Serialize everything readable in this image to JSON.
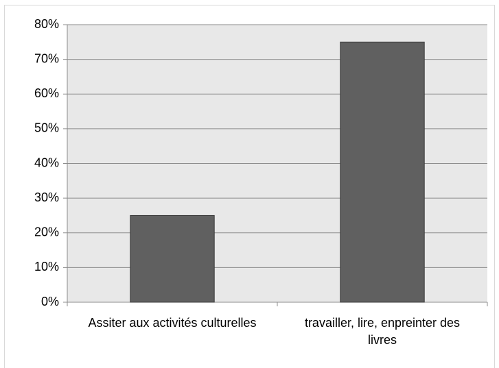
{
  "chart_data": {
    "type": "bar",
    "categories": [
      "Assiter aux activités culturelles",
      "travailler, lire, enpreinter des livres"
    ],
    "values": [
      25,
      75
    ],
    "color": "#606060",
    "ylim": [
      0,
      80
    ],
    "yticks": [
      {
        "value": 0,
        "label": "0%"
      },
      {
        "value": 10,
        "label": "10%"
      },
      {
        "value": 20,
        "label": "20%"
      },
      {
        "value": 30,
        "label": "30%"
      },
      {
        "value": 40,
        "label": "40%"
      },
      {
        "value": 50,
        "label": "50%"
      },
      {
        "value": 60,
        "label": "60%"
      },
      {
        "value": 70,
        "label": "70%"
      },
      {
        "value": 80,
        "label": "80%"
      }
    ],
    "grid": true
  }
}
